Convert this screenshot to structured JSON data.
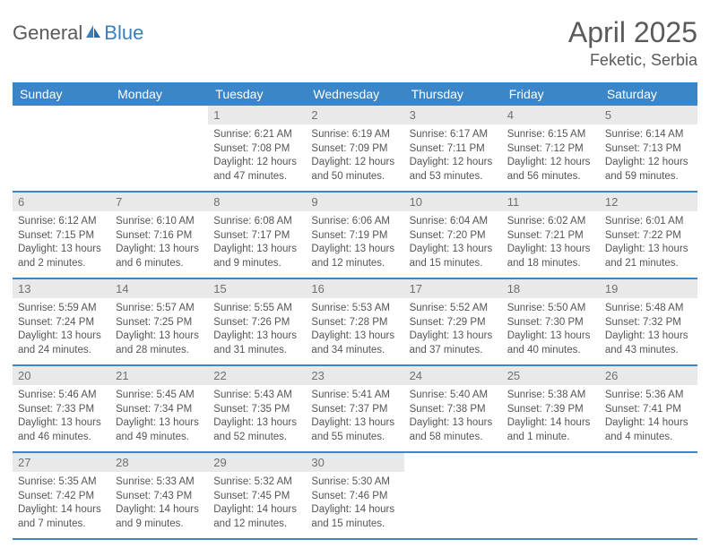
{
  "logo": {
    "part1": "General",
    "part2": "Blue"
  },
  "title": "April 2025",
  "location": "Feketic, Serbia",
  "colors": {
    "header_bg": "#3a86c8",
    "header_text": "#ffffff",
    "daynum_bg": "#e9e9e9",
    "daynum_text": "#707070",
    "body_text": "#555555",
    "rule": "#3a86c8",
    "logo_gray": "#5a5a5a",
    "logo_blue": "#3a7fbf"
  },
  "fonts": {
    "title_size": 32,
    "location_size": 18,
    "header_size": 14,
    "daynum_size": 13,
    "body_size": 11.5
  },
  "day_headers": [
    "Sunday",
    "Monday",
    "Tuesday",
    "Wednesday",
    "Thursday",
    "Friday",
    "Saturday"
  ],
  "weeks": [
    [
      {
        "n": "",
        "sr": "",
        "ss": "",
        "dl": ""
      },
      {
        "n": "",
        "sr": "",
        "ss": "",
        "dl": ""
      },
      {
        "n": "1",
        "sr": "Sunrise: 6:21 AM",
        "ss": "Sunset: 7:08 PM",
        "dl": "Daylight: 12 hours and 47 minutes."
      },
      {
        "n": "2",
        "sr": "Sunrise: 6:19 AM",
        "ss": "Sunset: 7:09 PM",
        "dl": "Daylight: 12 hours and 50 minutes."
      },
      {
        "n": "3",
        "sr": "Sunrise: 6:17 AM",
        "ss": "Sunset: 7:11 PM",
        "dl": "Daylight: 12 hours and 53 minutes."
      },
      {
        "n": "4",
        "sr": "Sunrise: 6:15 AM",
        "ss": "Sunset: 7:12 PM",
        "dl": "Daylight: 12 hours and 56 minutes."
      },
      {
        "n": "5",
        "sr": "Sunrise: 6:14 AM",
        "ss": "Sunset: 7:13 PM",
        "dl": "Daylight: 12 hours and 59 minutes."
      }
    ],
    [
      {
        "n": "6",
        "sr": "Sunrise: 6:12 AM",
        "ss": "Sunset: 7:15 PM",
        "dl": "Daylight: 13 hours and 2 minutes."
      },
      {
        "n": "7",
        "sr": "Sunrise: 6:10 AM",
        "ss": "Sunset: 7:16 PM",
        "dl": "Daylight: 13 hours and 6 minutes."
      },
      {
        "n": "8",
        "sr": "Sunrise: 6:08 AM",
        "ss": "Sunset: 7:17 PM",
        "dl": "Daylight: 13 hours and 9 minutes."
      },
      {
        "n": "9",
        "sr": "Sunrise: 6:06 AM",
        "ss": "Sunset: 7:19 PM",
        "dl": "Daylight: 13 hours and 12 minutes."
      },
      {
        "n": "10",
        "sr": "Sunrise: 6:04 AM",
        "ss": "Sunset: 7:20 PM",
        "dl": "Daylight: 13 hours and 15 minutes."
      },
      {
        "n": "11",
        "sr": "Sunrise: 6:02 AM",
        "ss": "Sunset: 7:21 PM",
        "dl": "Daylight: 13 hours and 18 minutes."
      },
      {
        "n": "12",
        "sr": "Sunrise: 6:01 AM",
        "ss": "Sunset: 7:22 PM",
        "dl": "Daylight: 13 hours and 21 minutes."
      }
    ],
    [
      {
        "n": "13",
        "sr": "Sunrise: 5:59 AM",
        "ss": "Sunset: 7:24 PM",
        "dl": "Daylight: 13 hours and 24 minutes."
      },
      {
        "n": "14",
        "sr": "Sunrise: 5:57 AM",
        "ss": "Sunset: 7:25 PM",
        "dl": "Daylight: 13 hours and 28 minutes."
      },
      {
        "n": "15",
        "sr": "Sunrise: 5:55 AM",
        "ss": "Sunset: 7:26 PM",
        "dl": "Daylight: 13 hours and 31 minutes."
      },
      {
        "n": "16",
        "sr": "Sunrise: 5:53 AM",
        "ss": "Sunset: 7:28 PM",
        "dl": "Daylight: 13 hours and 34 minutes."
      },
      {
        "n": "17",
        "sr": "Sunrise: 5:52 AM",
        "ss": "Sunset: 7:29 PM",
        "dl": "Daylight: 13 hours and 37 minutes."
      },
      {
        "n": "18",
        "sr": "Sunrise: 5:50 AM",
        "ss": "Sunset: 7:30 PM",
        "dl": "Daylight: 13 hours and 40 minutes."
      },
      {
        "n": "19",
        "sr": "Sunrise: 5:48 AM",
        "ss": "Sunset: 7:32 PM",
        "dl": "Daylight: 13 hours and 43 minutes."
      }
    ],
    [
      {
        "n": "20",
        "sr": "Sunrise: 5:46 AM",
        "ss": "Sunset: 7:33 PM",
        "dl": "Daylight: 13 hours and 46 minutes."
      },
      {
        "n": "21",
        "sr": "Sunrise: 5:45 AM",
        "ss": "Sunset: 7:34 PM",
        "dl": "Daylight: 13 hours and 49 minutes."
      },
      {
        "n": "22",
        "sr": "Sunrise: 5:43 AM",
        "ss": "Sunset: 7:35 PM",
        "dl": "Daylight: 13 hours and 52 minutes."
      },
      {
        "n": "23",
        "sr": "Sunrise: 5:41 AM",
        "ss": "Sunset: 7:37 PM",
        "dl": "Daylight: 13 hours and 55 minutes."
      },
      {
        "n": "24",
        "sr": "Sunrise: 5:40 AM",
        "ss": "Sunset: 7:38 PM",
        "dl": "Daylight: 13 hours and 58 minutes."
      },
      {
        "n": "25",
        "sr": "Sunrise: 5:38 AM",
        "ss": "Sunset: 7:39 PM",
        "dl": "Daylight: 14 hours and 1 minute."
      },
      {
        "n": "26",
        "sr": "Sunrise: 5:36 AM",
        "ss": "Sunset: 7:41 PM",
        "dl": "Daylight: 14 hours and 4 minutes."
      }
    ],
    [
      {
        "n": "27",
        "sr": "Sunrise: 5:35 AM",
        "ss": "Sunset: 7:42 PM",
        "dl": "Daylight: 14 hours and 7 minutes."
      },
      {
        "n": "28",
        "sr": "Sunrise: 5:33 AM",
        "ss": "Sunset: 7:43 PM",
        "dl": "Daylight: 14 hours and 9 minutes."
      },
      {
        "n": "29",
        "sr": "Sunrise: 5:32 AM",
        "ss": "Sunset: 7:45 PM",
        "dl": "Daylight: 14 hours and 12 minutes."
      },
      {
        "n": "30",
        "sr": "Sunrise: 5:30 AM",
        "ss": "Sunset: 7:46 PM",
        "dl": "Daylight: 14 hours and 15 minutes."
      },
      {
        "n": "",
        "sr": "",
        "ss": "",
        "dl": ""
      },
      {
        "n": "",
        "sr": "",
        "ss": "",
        "dl": ""
      },
      {
        "n": "",
        "sr": "",
        "ss": "",
        "dl": ""
      }
    ]
  ]
}
